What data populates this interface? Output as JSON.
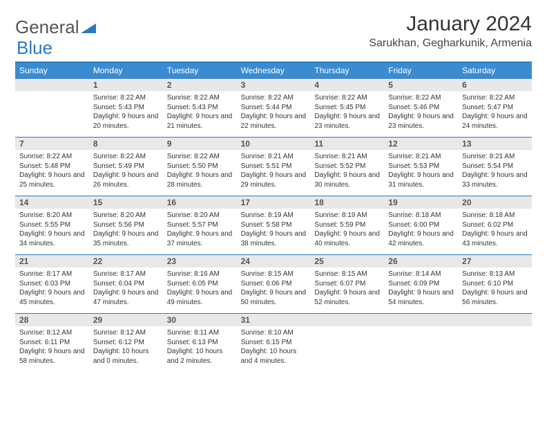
{
  "logo": {
    "part1": "General",
    "part2": "Blue"
  },
  "header": {
    "month_title": "January 2024",
    "location": "Sarukhan, Gegharkunik, Armenia"
  },
  "colors": {
    "accent": "#2a7ac0",
    "header_bar": "#3b8bd1",
    "daynum_bg": "#e8e8e8",
    "text": "#333333"
  },
  "weekdays": [
    "Sunday",
    "Monday",
    "Tuesday",
    "Wednesday",
    "Thursday",
    "Friday",
    "Saturday"
  ],
  "weeks": [
    {
      "nums": [
        "",
        "1",
        "2",
        "3",
        "4",
        "5",
        "6"
      ],
      "cells": [
        {
          "sunrise": "",
          "sunset": "",
          "daylight": ""
        },
        {
          "sunrise": "Sunrise: 8:22 AM",
          "sunset": "Sunset: 5:43 PM",
          "daylight": "Daylight: 9 hours and 20 minutes."
        },
        {
          "sunrise": "Sunrise: 8:22 AM",
          "sunset": "Sunset: 5:43 PM",
          "daylight": "Daylight: 9 hours and 21 minutes."
        },
        {
          "sunrise": "Sunrise: 8:22 AM",
          "sunset": "Sunset: 5:44 PM",
          "daylight": "Daylight: 9 hours and 22 minutes."
        },
        {
          "sunrise": "Sunrise: 8:22 AM",
          "sunset": "Sunset: 5:45 PM",
          "daylight": "Daylight: 9 hours and 23 minutes."
        },
        {
          "sunrise": "Sunrise: 8:22 AM",
          "sunset": "Sunset: 5:46 PM",
          "daylight": "Daylight: 9 hours and 23 minutes."
        },
        {
          "sunrise": "Sunrise: 8:22 AM",
          "sunset": "Sunset: 5:47 PM",
          "daylight": "Daylight: 9 hours and 24 minutes."
        }
      ]
    },
    {
      "nums": [
        "7",
        "8",
        "9",
        "10",
        "11",
        "12",
        "13"
      ],
      "cells": [
        {
          "sunrise": "Sunrise: 8:22 AM",
          "sunset": "Sunset: 5:48 PM",
          "daylight": "Daylight: 9 hours and 25 minutes."
        },
        {
          "sunrise": "Sunrise: 8:22 AM",
          "sunset": "Sunset: 5:49 PM",
          "daylight": "Daylight: 9 hours and 26 minutes."
        },
        {
          "sunrise": "Sunrise: 8:22 AM",
          "sunset": "Sunset: 5:50 PM",
          "daylight": "Daylight: 9 hours and 28 minutes."
        },
        {
          "sunrise": "Sunrise: 8:21 AM",
          "sunset": "Sunset: 5:51 PM",
          "daylight": "Daylight: 9 hours and 29 minutes."
        },
        {
          "sunrise": "Sunrise: 8:21 AM",
          "sunset": "Sunset: 5:52 PM",
          "daylight": "Daylight: 9 hours and 30 minutes."
        },
        {
          "sunrise": "Sunrise: 8:21 AM",
          "sunset": "Sunset: 5:53 PM",
          "daylight": "Daylight: 9 hours and 31 minutes."
        },
        {
          "sunrise": "Sunrise: 8:21 AM",
          "sunset": "Sunset: 5:54 PM",
          "daylight": "Daylight: 9 hours and 33 minutes."
        }
      ]
    },
    {
      "nums": [
        "14",
        "15",
        "16",
        "17",
        "18",
        "19",
        "20"
      ],
      "cells": [
        {
          "sunrise": "Sunrise: 8:20 AM",
          "sunset": "Sunset: 5:55 PM",
          "daylight": "Daylight: 9 hours and 34 minutes."
        },
        {
          "sunrise": "Sunrise: 8:20 AM",
          "sunset": "Sunset: 5:56 PM",
          "daylight": "Daylight: 9 hours and 35 minutes."
        },
        {
          "sunrise": "Sunrise: 8:20 AM",
          "sunset": "Sunset: 5:57 PM",
          "daylight": "Daylight: 9 hours and 37 minutes."
        },
        {
          "sunrise": "Sunrise: 8:19 AM",
          "sunset": "Sunset: 5:58 PM",
          "daylight": "Daylight: 9 hours and 38 minutes."
        },
        {
          "sunrise": "Sunrise: 8:19 AM",
          "sunset": "Sunset: 5:59 PM",
          "daylight": "Daylight: 9 hours and 40 minutes."
        },
        {
          "sunrise": "Sunrise: 8:18 AM",
          "sunset": "Sunset: 6:00 PM",
          "daylight": "Daylight: 9 hours and 42 minutes."
        },
        {
          "sunrise": "Sunrise: 8:18 AM",
          "sunset": "Sunset: 6:02 PM",
          "daylight": "Daylight: 9 hours and 43 minutes."
        }
      ]
    },
    {
      "nums": [
        "21",
        "22",
        "23",
        "24",
        "25",
        "26",
        "27"
      ],
      "cells": [
        {
          "sunrise": "Sunrise: 8:17 AM",
          "sunset": "Sunset: 6:03 PM",
          "daylight": "Daylight: 9 hours and 45 minutes."
        },
        {
          "sunrise": "Sunrise: 8:17 AM",
          "sunset": "Sunset: 6:04 PM",
          "daylight": "Daylight: 9 hours and 47 minutes."
        },
        {
          "sunrise": "Sunrise: 8:16 AM",
          "sunset": "Sunset: 6:05 PM",
          "daylight": "Daylight: 9 hours and 49 minutes."
        },
        {
          "sunrise": "Sunrise: 8:15 AM",
          "sunset": "Sunset: 6:06 PM",
          "daylight": "Daylight: 9 hours and 50 minutes."
        },
        {
          "sunrise": "Sunrise: 8:15 AM",
          "sunset": "Sunset: 6:07 PM",
          "daylight": "Daylight: 9 hours and 52 minutes."
        },
        {
          "sunrise": "Sunrise: 8:14 AM",
          "sunset": "Sunset: 6:09 PM",
          "daylight": "Daylight: 9 hours and 54 minutes."
        },
        {
          "sunrise": "Sunrise: 8:13 AM",
          "sunset": "Sunset: 6:10 PM",
          "daylight": "Daylight: 9 hours and 56 minutes."
        }
      ]
    },
    {
      "nums": [
        "28",
        "29",
        "30",
        "31",
        "",
        "",
        ""
      ],
      "cells": [
        {
          "sunrise": "Sunrise: 8:12 AM",
          "sunset": "Sunset: 6:11 PM",
          "daylight": "Daylight: 9 hours and 58 minutes."
        },
        {
          "sunrise": "Sunrise: 8:12 AM",
          "sunset": "Sunset: 6:12 PM",
          "daylight": "Daylight: 10 hours and 0 minutes."
        },
        {
          "sunrise": "Sunrise: 8:11 AM",
          "sunset": "Sunset: 6:13 PM",
          "daylight": "Daylight: 10 hours and 2 minutes."
        },
        {
          "sunrise": "Sunrise: 8:10 AM",
          "sunset": "Sunset: 6:15 PM",
          "daylight": "Daylight: 10 hours and 4 minutes."
        },
        {
          "sunrise": "",
          "sunset": "",
          "daylight": ""
        },
        {
          "sunrise": "",
          "sunset": "",
          "daylight": ""
        },
        {
          "sunrise": "",
          "sunset": "",
          "daylight": ""
        }
      ]
    }
  ]
}
